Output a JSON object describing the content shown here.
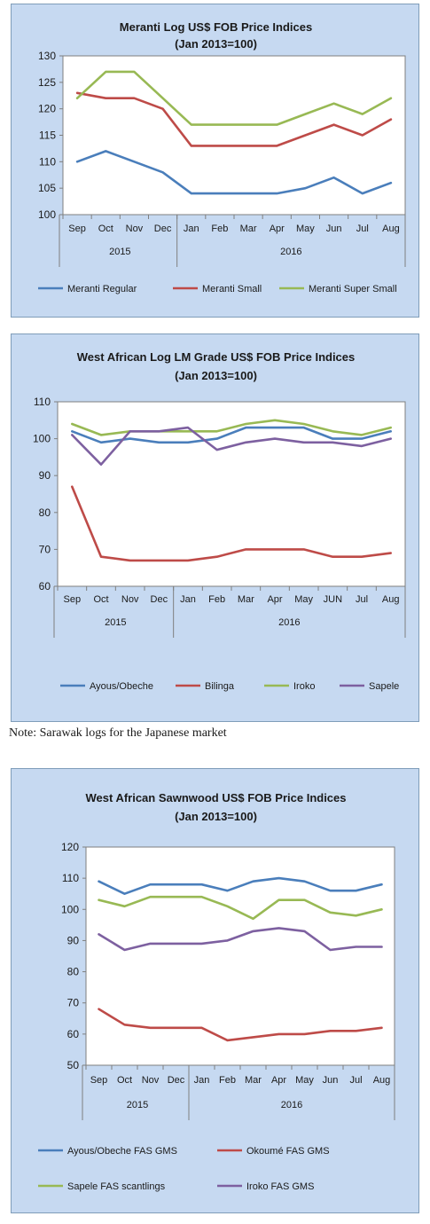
{
  "note": "Note: Sarawak logs for the Japanese market",
  "chart_data": [
    {
      "type": "line",
      "title": "Meranti Log US$ FOB Price Indices",
      "subtitle": "(Jan 2013=100)",
      "categories": [
        "Sep",
        "Oct",
        "Nov",
        "Dec",
        "Jan",
        "Feb",
        "Mar",
        "Apr",
        "May",
        "Jun",
        "Jul",
        "Aug"
      ],
      "year_groups": [
        {
          "label": "2015",
          "start": 0,
          "end": 3
        },
        {
          "label": "2016",
          "start": 4,
          "end": 11
        }
      ],
      "ylim": [
        100,
        130
      ],
      "yticks": [
        100,
        105,
        110,
        115,
        120,
        125,
        130
      ],
      "grid": false,
      "legend": "bottom",
      "series": [
        {
          "name": "Meranti Regular",
          "color": "#4a7ebb",
          "values": [
            110,
            112,
            110,
            108,
            104,
            104,
            104,
            104,
            105,
            107,
            104,
            106
          ]
        },
        {
          "name": "Meranti Small",
          "color": "#be4b48",
          "values": [
            123,
            122,
            122,
            120,
            113,
            113,
            113,
            113,
            115,
            117,
            115,
            118
          ]
        },
        {
          "name": "Meranti Super Small",
          "color": "#98b954",
          "values": [
            122,
            127,
            127,
            122,
            117,
            117,
            117,
            117,
            119,
            121,
            119,
            122
          ]
        }
      ]
    },
    {
      "type": "line",
      "title": "West African Log LM Grade US$ FOB Price Indices",
      "subtitle": "(Jan 2013=100)",
      "categories": [
        "Sep",
        "Oct",
        "Nov",
        "Dec",
        "Jan",
        "Feb",
        "Mar",
        "Apr",
        "May",
        "JUN",
        "Jul",
        "Aug"
      ],
      "year_groups": [
        {
          "label": "2015",
          "start": 0,
          "end": 3
        },
        {
          "label": "2016",
          "start": 4,
          "end": 11
        }
      ],
      "ylim": [
        60,
        110
      ],
      "yticks": [
        60,
        70,
        80,
        90,
        100,
        110
      ],
      "grid": false,
      "legend": "bottom",
      "series": [
        {
          "name": "Ayous/Obeche",
          "color": "#4a7ebb",
          "values": [
            102,
            99,
            100,
            99,
            99,
            100,
            103,
            103,
            103,
            100,
            100,
            102
          ]
        },
        {
          "name": "Bilinga",
          "color": "#be4b48",
          "values": [
            87,
            68,
            67,
            67,
            67,
            68,
            70,
            70,
            70,
            68,
            68,
            69
          ]
        },
        {
          "name": "Iroko",
          "color": "#98b954",
          "values": [
            104,
            101,
            102,
            102,
            102,
            102,
            104,
            105,
            104,
            102,
            101,
            103
          ]
        },
        {
          "name": "Sapele",
          "color": "#7d60a0",
          "values": [
            101,
            93,
            102,
            102,
            103,
            97,
            99,
            100,
            99,
            99,
            98,
            100
          ]
        }
      ]
    },
    {
      "type": "line",
      "title": "West African Sawnwood US$ FOB Price Indices",
      "subtitle": "(Jan 2013=100)",
      "categories": [
        "Sep",
        "Oct",
        "Nov",
        "Dec",
        "Jan",
        "Feb",
        "Mar",
        "Apr",
        "May",
        "Jun",
        "Jul",
        "Aug"
      ],
      "year_groups": [
        {
          "label": "2015",
          "start": 0,
          "end": 3
        },
        {
          "label": "2016",
          "start": 4,
          "end": 11
        }
      ],
      "ylim": [
        50,
        120
      ],
      "yticks": [
        50,
        60,
        70,
        80,
        90,
        100,
        110,
        120
      ],
      "grid": false,
      "legend": "bottom",
      "series": [
        {
          "name": "Ayous/Obeche FAS GMS",
          "color": "#4a7ebb",
          "values": [
            109,
            105,
            108,
            108,
            108,
            106,
            109,
            110,
            109,
            106,
            106,
            108
          ]
        },
        {
          "name": "Okoumé FAS GMS",
          "color": "#be4b48",
          "values": [
            68,
            63,
            62,
            62,
            62,
            58,
            59,
            60,
            60,
            61,
            61,
            62
          ]
        },
        {
          "name": "Sapele FAS scantlings",
          "color": "#98b954",
          "values": [
            103,
            101,
            104,
            104,
            104,
            101,
            97,
            103,
            103,
            99,
            98,
            100
          ]
        },
        {
          "name": "Iroko FAS GMS",
          "color": "#7d60a0",
          "values": [
            92,
            87,
            89,
            89,
            89,
            90,
            93,
            94,
            93,
            87,
            88,
            88
          ]
        }
      ]
    }
  ]
}
